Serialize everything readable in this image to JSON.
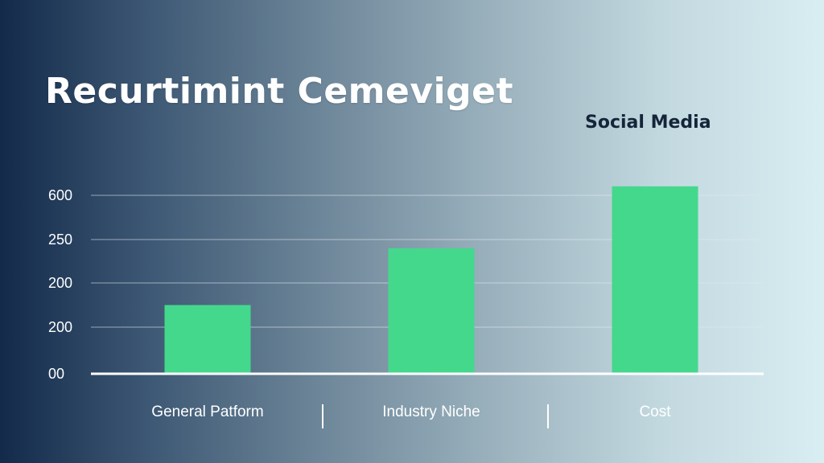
{
  "chart_data": {
    "type": "bar",
    "title": "Recurtimint Cemeviget",
    "legend": [
      "Social Media"
    ],
    "legend_position": "top-right",
    "categories": [
      "General Patform",
      "Industry Niche",
      "Cost"
    ],
    "series": [
      {
        "name": "Social Media",
        "values": [
          150,
          280,
          420
        ]
      }
    ],
    "ytick_labels": [
      "00",
      "200",
      "200",
      "250",
      "600"
    ],
    "grid": true,
    "colors": {
      "bar": "#44d88d",
      "gridline": "#dfe7ee",
      "axis": "#ffffff"
    }
  }
}
